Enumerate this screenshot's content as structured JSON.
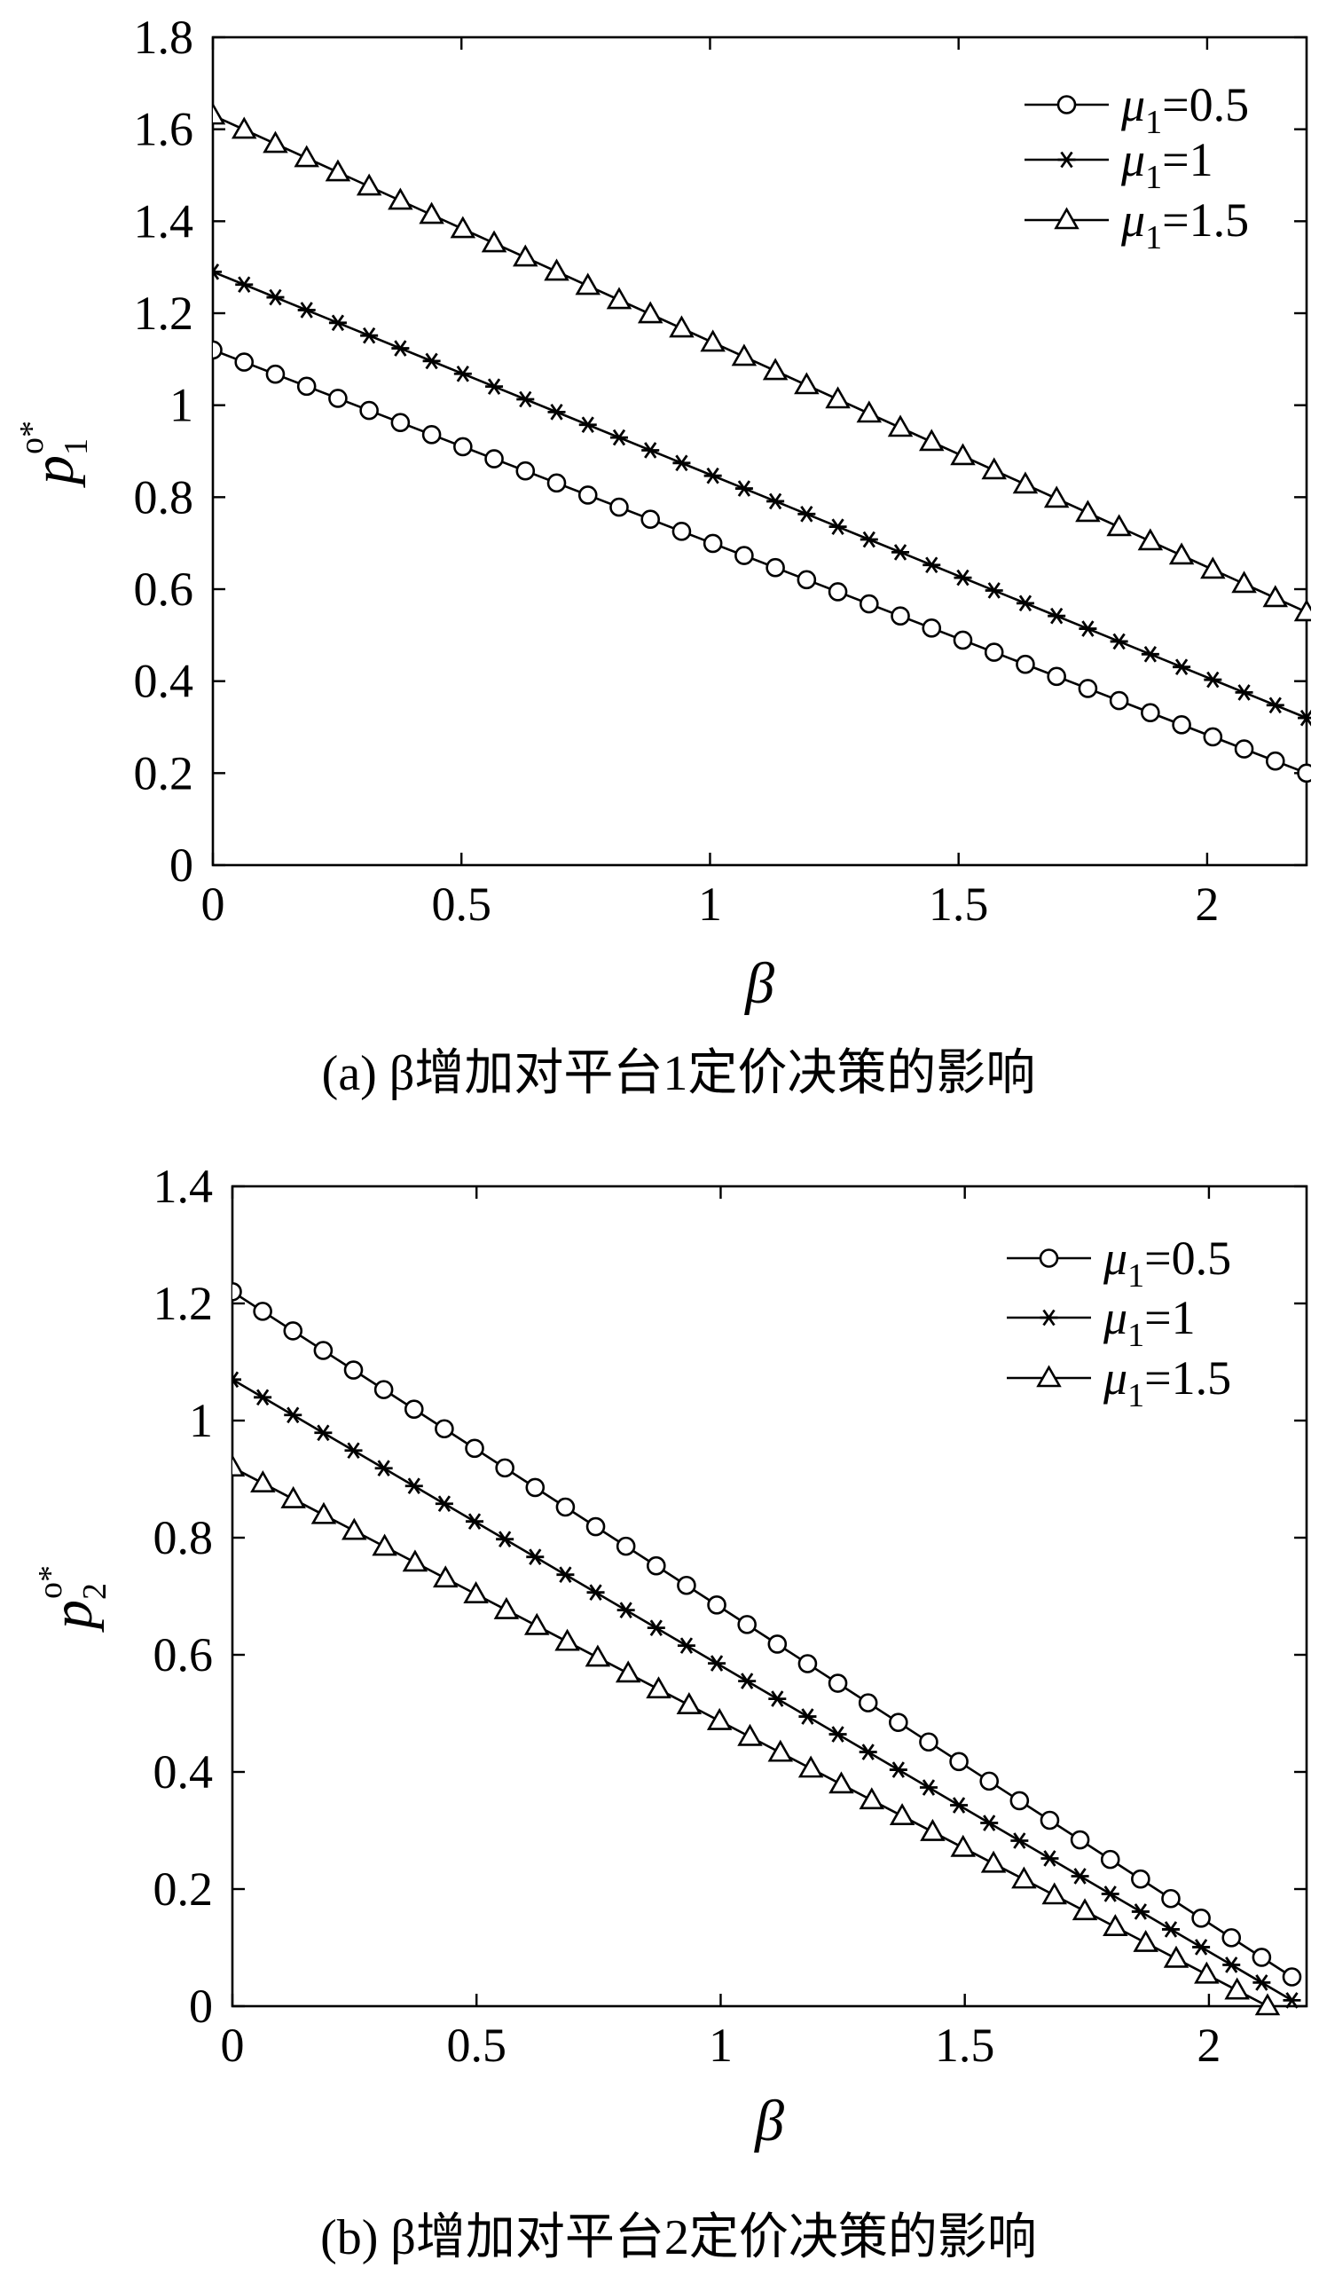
{
  "chart_data": [
    {
      "type": "line",
      "caption": "(a) β增加对平台1定价决策的影响",
      "xlabel": "β",
      "ylabel": {
        "base": "p",
        "sub": "1",
        "sup": "o*"
      },
      "xlim": [
        0,
        2.2
      ],
      "ylim": [
        0,
        1.8
      ],
      "xticks": [
        "0",
        "0.5",
        "1",
        "1.5",
        "2"
      ],
      "yticks": [
        "0",
        "0.2",
        "0.4",
        "0.6",
        "0.8",
        "1",
        "1.2",
        "1.4",
        "1.6",
        "1.8"
      ],
      "legend_position": "top-right",
      "grid": false,
      "series": [
        {
          "name": "μ1=0.5",
          "label": {
            "base": "μ",
            "sub": "1",
            "rest": "=0.5"
          },
          "marker": "circle",
          "x_start": 0,
          "x_end": 2.2,
          "y_start": 1.12,
          "y_end": 0.2
        },
        {
          "name": "μ1=1",
          "label": {
            "base": "μ",
            "sub": "1",
            "rest": "=1"
          },
          "marker": "star",
          "x_start": 0,
          "x_end": 2.2,
          "y_start": 1.29,
          "y_end": 0.32
        },
        {
          "name": "μ1=1.5",
          "label": {
            "base": "μ",
            "sub": "1",
            "rest": "=1.5"
          },
          "marker": "triangle",
          "x_start": 0,
          "x_end": 2.2,
          "y_start": 1.63,
          "y_end": 0.55
        }
      ]
    },
    {
      "type": "line",
      "caption": "(b) β增加对平台2定价决策的影响",
      "xlabel": "β",
      "ylabel": {
        "base": "p",
        "sub": "2",
        "sup": "o*"
      },
      "xlim": [
        0,
        2.2
      ],
      "ylim": [
        0,
        1.4
      ],
      "xticks": [
        "0",
        "0.5",
        "1",
        "1.5",
        "2"
      ],
      "yticks": [
        "0",
        "0.2",
        "0.4",
        "0.6",
        "0.8",
        "1",
        "1.2",
        "1.4"
      ],
      "legend_position": "top-right",
      "grid": false,
      "series": [
        {
          "name": "μ1=0.5",
          "label": {
            "base": "μ",
            "sub": "1",
            "rest": "=0.5"
          },
          "marker": "circle",
          "x_start": 0,
          "x_end": 2.17,
          "y_start": 1.22,
          "y_end": 0.05
        },
        {
          "name": "μ1=1",
          "label": {
            "base": "μ",
            "sub": "1",
            "rest": "=1"
          },
          "marker": "star",
          "x_start": 0,
          "x_end": 2.17,
          "y_start": 1.07,
          "y_end": 0.01
        },
        {
          "name": "μ1=1.5",
          "label": {
            "base": "μ",
            "sub": "1",
            "rest": "=1.5"
          },
          "marker": "triangle",
          "x_start": 0,
          "x_end": 2.12,
          "y_start": 0.92,
          "y_end": 0.0
        }
      ]
    }
  ]
}
